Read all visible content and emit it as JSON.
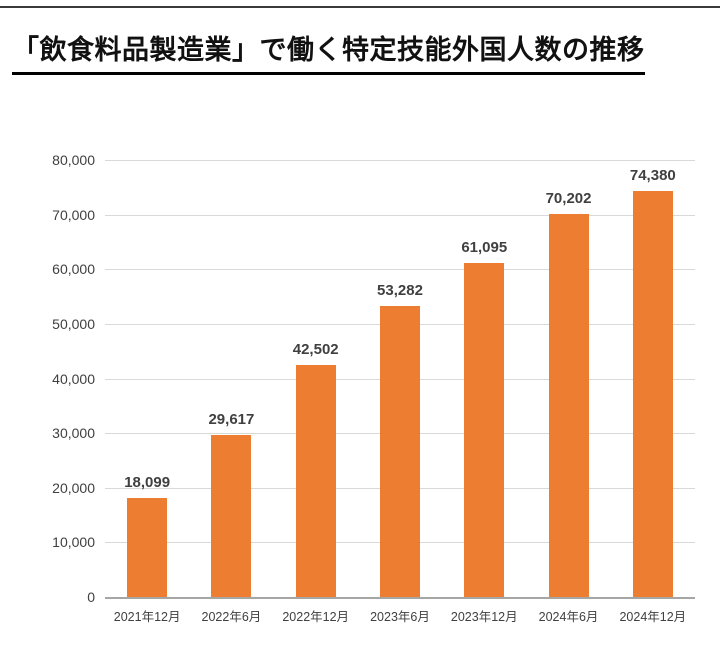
{
  "page": {
    "title": "「飲食料品製造業」で働く特定技能外国人数の推移"
  },
  "chart_data": {
    "type": "bar",
    "title": "「飲食料品製造業」で働く特定技能外国人数の推移",
    "categories": [
      "2021年12月",
      "2022年6月",
      "2022年12月",
      "2023年6月",
      "2023年12月",
      "2024年6月",
      "2024年12月"
    ],
    "values": [
      18099,
      29617,
      42502,
      53282,
      61095,
      70202,
      74380
    ],
    "value_labels": [
      "18,099",
      "29,617",
      "42,502",
      "53,282",
      "61,095",
      "70,202",
      "74,380"
    ],
    "xlabel": "",
    "ylabel": "",
    "ylim": [
      0,
      80000
    ],
    "ytick_step": 10000,
    "ytick_labels": [
      "0",
      "10,000",
      "20,000",
      "30,000",
      "40,000",
      "50,000",
      "60,000",
      "70,000",
      "80,000"
    ],
    "grid": true,
    "legend": "none",
    "bar_color": "#ED7D31"
  },
  "colors": {
    "bar": "#ED7D31",
    "grid": "#D9D9D9",
    "axis": "#A6A6A6",
    "text": "#404040",
    "title_text": "#111111"
  }
}
